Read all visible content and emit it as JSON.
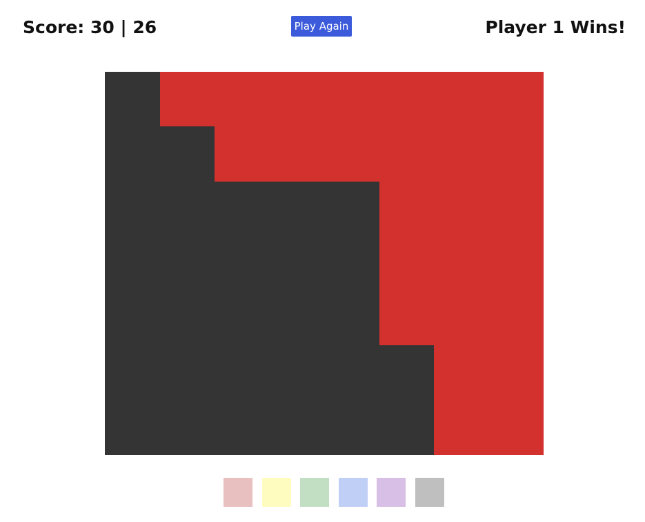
{
  "header": {
    "score_text": "Score: 30 | 26",
    "play_again_label": "Play Again",
    "winner_text": "Player 1 Wins!"
  },
  "board": {
    "columns": 8,
    "rows": 7,
    "colors": {
      "D": "#343434",
      "R": "#d2312d"
    },
    "grid": [
      "DRRRRRRR",
      "DDRRRRRR",
      "DDDDDRRR",
      "DDDDDRRR",
      "DDDDDRRR",
      "DDDDDDRR",
      "DDDDDDRR"
    ]
  },
  "palette": [
    {
      "name": "color-swatch-red",
      "color": "#e8c0c0"
    },
    {
      "name": "color-swatch-yellow",
      "color": "#fffcbf"
    },
    {
      "name": "color-swatch-green",
      "color": "#c2dfc4"
    },
    {
      "name": "color-swatch-blue",
      "color": "#c0cff5"
    },
    {
      "name": "color-swatch-purple",
      "color": "#d8bfe5"
    },
    {
      "name": "color-swatch-gray",
      "color": "#bfbfbf"
    }
  ]
}
